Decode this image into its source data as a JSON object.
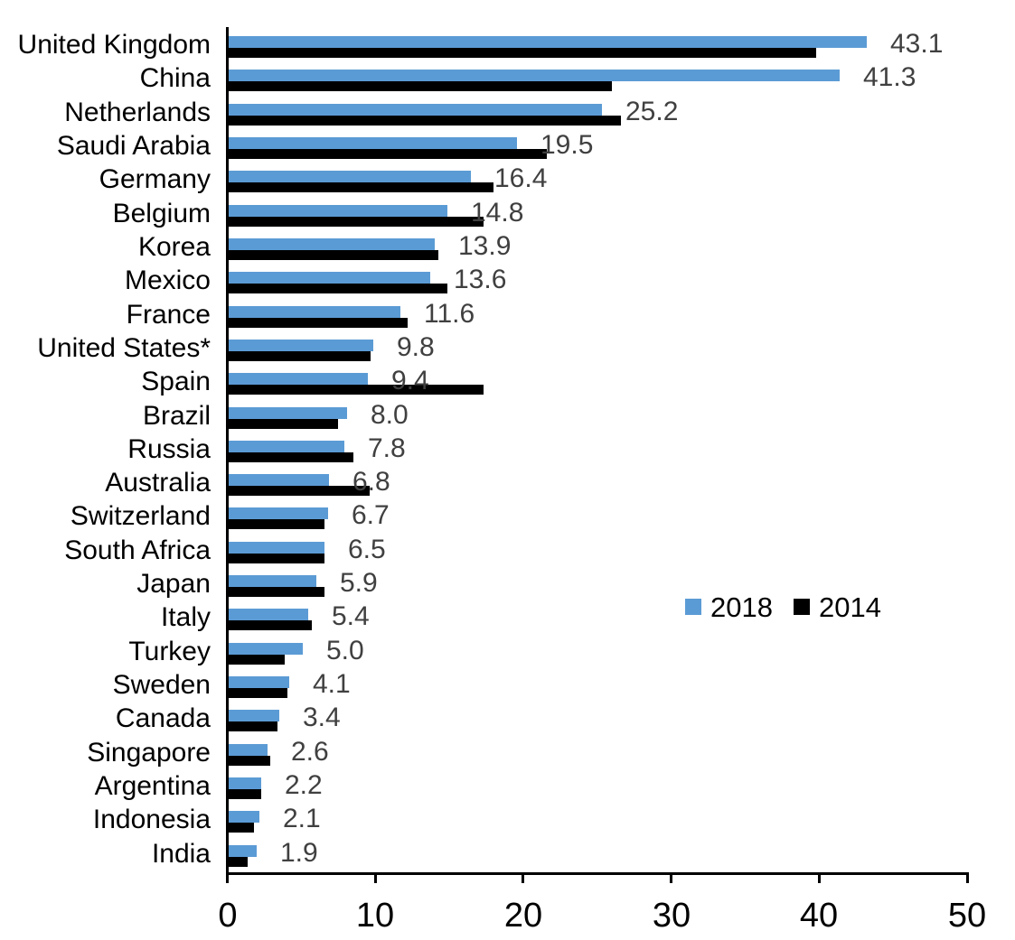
{
  "chart_data": {
    "type": "bar",
    "orientation": "horizontal",
    "title": "",
    "xlabel": "",
    "ylabel": "",
    "xlim": [
      0,
      50
    ],
    "x_ticks": [
      0,
      10,
      20,
      30,
      40,
      50
    ],
    "grid": false,
    "legend_position": "middle-right",
    "categories": [
      "United Kingdom",
      "China",
      "Netherlands",
      "Saudi Arabia",
      "Germany",
      "Belgium",
      "Korea",
      "Mexico",
      "France",
      "United States*",
      "Spain",
      "Brazil",
      "Russia",
      "Australia",
      "Switzerland",
      "South Africa",
      "Japan",
      "Italy",
      "Turkey",
      "Sweden",
      "Canada",
      "Singapore",
      "Argentina",
      "Indonesia",
      "India"
    ],
    "series": [
      {
        "name": "2018",
        "color": "#5B9BD5",
        "values": [
          43.1,
          41.3,
          25.2,
          19.5,
          16.4,
          14.8,
          13.9,
          13.6,
          11.6,
          9.8,
          9.4,
          8.0,
          7.8,
          6.8,
          6.7,
          6.5,
          5.9,
          5.4,
          5.0,
          4.1,
          3.4,
          2.6,
          2.2,
          2.1,
          1.9
        ],
        "data_labels": [
          "43.1",
          "41.3",
          "25.2",
          "19.5",
          "16.4",
          "14.8",
          "13.9",
          "13.6",
          "11.6",
          "9.8",
          "9.4",
          "8.0",
          "7.8",
          "6.8",
          "6.7",
          "6.5",
          "5.9",
          "5.4",
          "5.0",
          "4.1",
          "3.4",
          "2.6",
          "2.2",
          "2.1",
          "1.9"
        ]
      },
      {
        "name": "2014",
        "color": "#000000",
        "values": [
          39.7,
          25.9,
          26.5,
          21.5,
          17.9,
          17.2,
          14.2,
          14.8,
          12.1,
          9.6,
          17.2,
          7.4,
          8.4,
          9.5,
          6.5,
          6.5,
          6.5,
          5.6,
          3.8,
          4.0,
          3.3,
          2.8,
          2.2,
          1.7,
          1.3
        ]
      }
    ]
  },
  "legend": {
    "items": [
      {
        "label": "2018",
        "color": "#5B9BD5"
      },
      {
        "label": "2014",
        "color": "#000000"
      }
    ]
  },
  "colors": {
    "series_2018": "#5B9BD5",
    "series_2014": "#000000",
    "value_label_text": "#404040",
    "axis": "#000000",
    "background": "#ffffff"
  }
}
